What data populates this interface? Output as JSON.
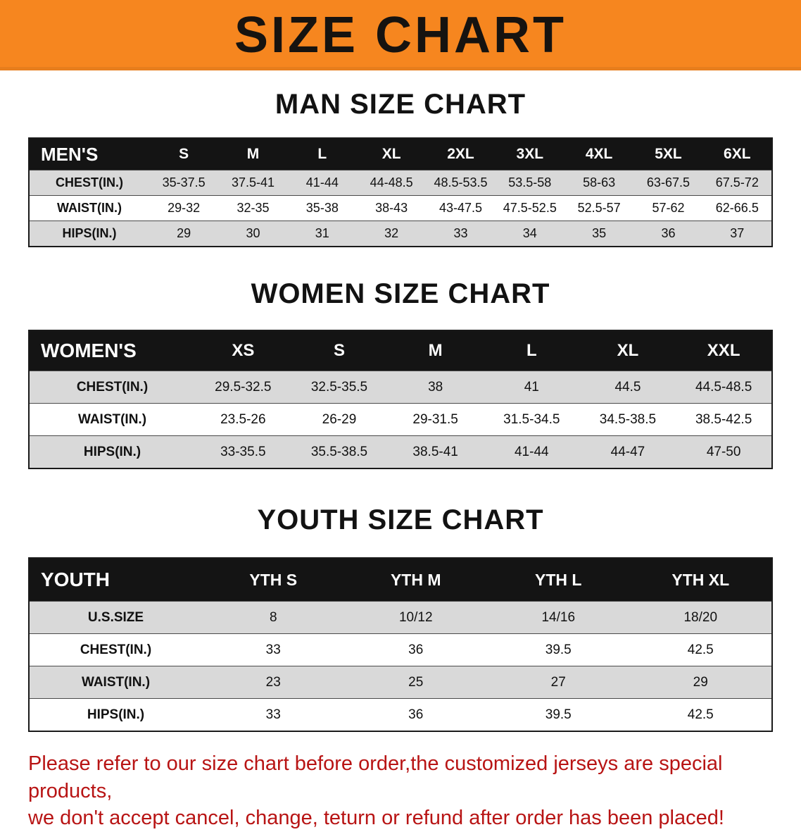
{
  "banner": {
    "title": "SIZE CHART"
  },
  "colors": {
    "banner_orange": "#f6861f",
    "table_header_black": "#141414",
    "stripe_gray": "#d9d9d9",
    "disclaimer_red": "#b81414"
  },
  "men": {
    "heading": "MAN SIZE CHART",
    "header": [
      "MEN'S",
      "S",
      "M",
      "L",
      "XL",
      "2XL",
      "3XL",
      "4XL",
      "5XL",
      "6XL"
    ],
    "rows": [
      [
        "CHEST(IN.)",
        "35-37.5",
        "37.5-41",
        "41-44",
        "44-48.5",
        "48.5-53.5",
        "53.5-58",
        "58-63",
        "63-67.5",
        "67.5-72"
      ],
      [
        "WAIST(IN.)",
        "29-32",
        "32-35",
        "35-38",
        "38-43",
        "43-47.5",
        "47.5-52.5",
        "52.5-57",
        "57-62",
        "62-66.5"
      ],
      [
        "HIPS(IN.)",
        "29",
        "30",
        "31",
        "32",
        "33",
        "34",
        "35",
        "36",
        "37"
      ]
    ]
  },
  "women": {
    "heading": "WOMEN SIZE CHART",
    "header": [
      "WOMEN'S",
      "XS",
      "S",
      "M",
      "L",
      "XL",
      "XXL"
    ],
    "rows": [
      [
        "CHEST(IN.)",
        "29.5-32.5",
        "32.5-35.5",
        "38",
        "41",
        "44.5",
        "44.5-48.5"
      ],
      [
        "WAIST(IN.)",
        "23.5-26",
        "26-29",
        "29-31.5",
        "31.5-34.5",
        "34.5-38.5",
        "38.5-42.5"
      ],
      [
        "HIPS(IN.)",
        "33-35.5",
        "35.5-38.5",
        "38.5-41",
        "41-44",
        "44-47",
        "47-50"
      ]
    ]
  },
  "youth": {
    "heading": "YOUTH SIZE CHART",
    "header": [
      "YOUTH",
      "YTH S",
      "YTH M",
      "YTH L",
      "YTH XL"
    ],
    "rows": [
      [
        "U.S.SIZE",
        "8",
        "10/12",
        "14/16",
        "18/20"
      ],
      [
        "CHEST(IN.)",
        "33",
        "36",
        "39.5",
        "42.5"
      ],
      [
        "WAIST(IN.)",
        "23",
        "25",
        "27",
        "29"
      ],
      [
        "HIPS(IN.)",
        "33",
        "36",
        "39.5",
        "42.5"
      ]
    ]
  },
  "footer": {
    "line1": "Please refer to our size chart before order,the customized jerseys are special products,",
    "line2": "we don't accept cancel, change, teturn or refund after order has been placed!"
  }
}
